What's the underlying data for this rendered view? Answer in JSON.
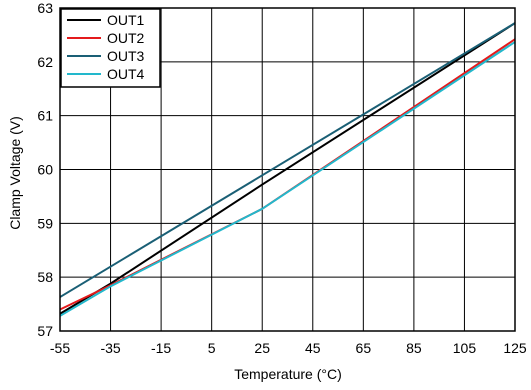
{
  "chart_data": {
    "type": "line",
    "title": "",
    "xlabel": "Temperature (°C)",
    "ylabel": "Clamp Voltage (V)",
    "xlim": [
      -55,
      125
    ],
    "ylim": [
      57,
      63
    ],
    "x_ticks": [
      -55,
      -35,
      -15,
      5,
      25,
      45,
      65,
      85,
      105,
      125
    ],
    "y_ticks": [
      57,
      58,
      59,
      60,
      61,
      62,
      63
    ],
    "grid": true,
    "legend_position": "top-left",
    "series": [
      {
        "name": "OUT1",
        "color": "#000000",
        "x": [
          -55,
          -35,
          25,
          125
        ],
        "y": [
          57.32,
          57.88,
          59.72,
          62.72
        ]
      },
      {
        "name": "OUT2",
        "color": "#e41a1c",
        "x": [
          -55,
          -35,
          25,
          125
        ],
        "y": [
          57.4,
          57.85,
          59.27,
          62.42
        ]
      },
      {
        "name": "OUT3",
        "color": "#1a5f75",
        "x": [
          -55,
          125
        ],
        "y": [
          57.63,
          62.72
        ]
      },
      {
        "name": "OUT4",
        "color": "#22b8cc",
        "x": [
          -55,
          -35,
          25,
          125
        ],
        "y": [
          57.28,
          57.83,
          59.27,
          62.37
        ]
      }
    ]
  }
}
